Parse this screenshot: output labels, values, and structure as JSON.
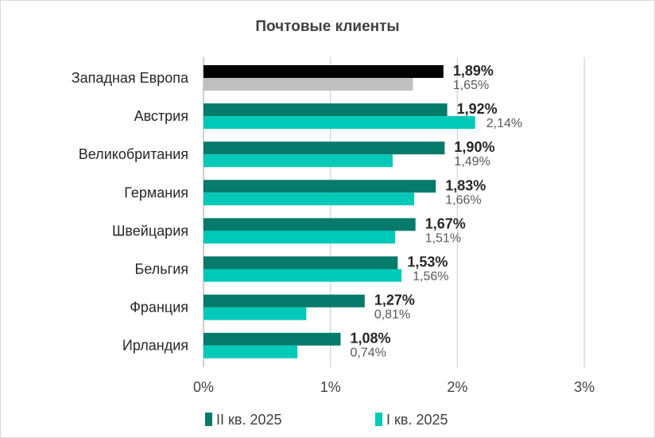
{
  "chart_data": {
    "type": "bar",
    "orientation": "horizontal",
    "title": "Почтовые клиенты",
    "categories": [
      "Западная Европа",
      "Австрия",
      "Великобритания",
      "Германия",
      "Швейцария",
      "Бельгия",
      "Франция",
      "Ирландия"
    ],
    "series": [
      {
        "name": "II кв. 2025",
        "values": [
          1.89,
          1.92,
          1.9,
          1.83,
          1.67,
          1.53,
          1.27,
          1.08
        ],
        "labels": [
          "1,89%",
          "1,92%",
          "1,90%",
          "1,83%",
          "1,67%",
          "1,53%",
          "1,27%",
          "1,08%"
        ],
        "color": "#067a6b",
        "first_color": "#000000"
      },
      {
        "name": "I кв. 2025",
        "values": [
          1.65,
          2.14,
          1.49,
          1.66,
          1.51,
          1.56,
          0.81,
          0.74
        ],
        "labels": [
          "1,65%",
          "2,14%",
          "1,49%",
          "1,66%",
          "1,51%",
          "1,56%",
          "0,81%",
          "0,74%"
        ],
        "color": "#00c9b7",
        "first_color": "#bfbfbf"
      }
    ],
    "xlim": [
      0,
      3
    ],
    "xticks": [
      0,
      1,
      2,
      3
    ],
    "xtick_labels": [
      "0%",
      "1%",
      "2%",
      "3%"
    ],
    "grid": true,
    "legend_position": "bottom"
  }
}
